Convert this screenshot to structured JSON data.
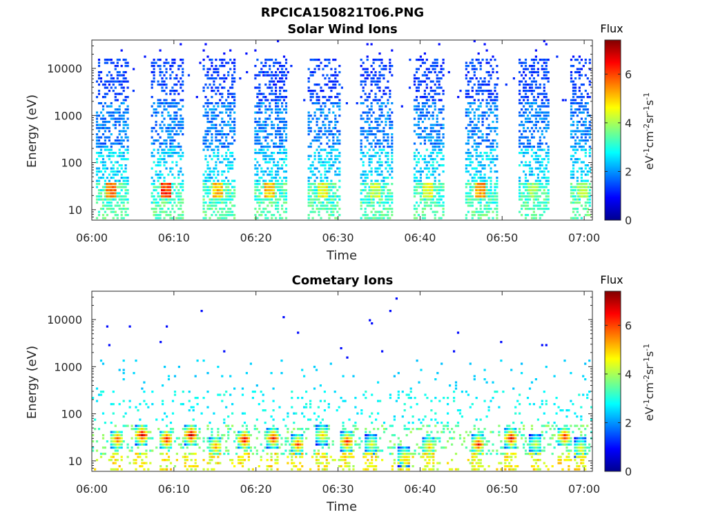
{
  "figure": {
    "title": "RPCICA150821T06.PNG"
  },
  "colors": {
    "colormap": [
      "#00008f",
      "#0000ff",
      "#0080ff",
      "#00ffff",
      "#80ff80",
      "#ffff00",
      "#ff8000",
      "#ff0000",
      "#800000"
    ],
    "axes": "#262626",
    "background": "#ffffff"
  },
  "chart_data": [
    {
      "type": "heatmap",
      "title": "Solar Wind Ions",
      "xlabel": "Time",
      "ylabel": "Energy (eV)",
      "yscale": "log",
      "ylim": [
        6,
        40000
      ],
      "xlim": [
        "06:00",
        "07:01"
      ],
      "x_ticks": [
        "06:00",
        "06:10",
        "06:20",
        "06:30",
        "06:40",
        "06:50",
        "07:00"
      ],
      "y_ticks": [
        "10",
        "100",
        "1000",
        "10000"
      ],
      "colorbar": {
        "title": "Flux",
        "label": "eV-1cm-2sr-1s-1",
        "range": [
          0,
          7.4
        ],
        "ticks": [
          "0",
          "2",
          "4",
          "6"
        ]
      },
      "bursts": [
        {
          "time": "06:00.5",
          "width_min": 3.8,
          "peak_flux": 6.0
        },
        {
          "time": "06:07.2",
          "width_min": 3.8,
          "peak_flux": 6.6
        },
        {
          "time": "06:13.5",
          "width_min": 3.8,
          "peak_flux": 5.6
        },
        {
          "time": "06:19.8",
          "width_min": 3.8,
          "peak_flux": 5.5
        },
        {
          "time": "06:26.3",
          "width_min": 3.8,
          "peak_flux": 5.0
        },
        {
          "time": "06:32.7",
          "width_min": 3.8,
          "peak_flux": 4.6
        },
        {
          "time": "06:39.2",
          "width_min": 3.6,
          "peak_flux": 5.0
        },
        {
          "time": "06:45.5",
          "width_min": 3.8,
          "peak_flux": 5.8
        },
        {
          "time": "06:52.0",
          "width_min": 3.6,
          "peak_flux": 4.3
        },
        {
          "time": "06:58.3",
          "width_min": 3.0,
          "peak_flux": 4.4
        }
      ],
      "sparse_text_ticks_note": ""
    },
    {
      "type": "heatmap",
      "title": "Cometary Ions",
      "xlabel": "Time",
      "ylabel": "Energy (eV)",
      "yscale": "log",
      "ylim": [
        6,
        40000
      ],
      "xlim": [
        "06:00",
        "07:01"
      ],
      "x_ticks": [
        "06:00",
        "06:10",
        "06:20",
        "06:30",
        "06:40",
        "06:50",
        "07:00"
      ],
      "y_ticks": [
        "10",
        "100",
        "1000",
        "10000"
      ],
      "colorbar": {
        "title": "Flux",
        "label": "eV-1cm-2sr-1s-1",
        "range": [
          0,
          7.4
        ],
        "ticks": [
          "0",
          "2",
          "4",
          "6"
        ]
      },
      "hotspots": [
        {
          "time": "06:03",
          "energy": 28,
          "peak_flux": 6.4
        },
        {
          "time": "06:06",
          "energy": 35,
          "peak_flux": 7.3
        },
        {
          "time": "06:09",
          "energy": 28,
          "peak_flux": 7.0
        },
        {
          "time": "06:12",
          "energy": 35,
          "peak_flux": 7.4
        },
        {
          "time": "06:15",
          "energy": 20,
          "peak_flux": 6.0
        },
        {
          "time": "06:18.5",
          "energy": 28,
          "peak_flux": 7.2
        },
        {
          "time": "06:22",
          "energy": 30,
          "peak_flux": 6.8
        },
        {
          "time": "06:25",
          "energy": 22,
          "peak_flux": 6.4
        },
        {
          "time": "06:28",
          "energy": 35,
          "peak_flux": 5.5
        },
        {
          "time": "06:31",
          "energy": 25,
          "peak_flux": 6.8
        },
        {
          "time": "06:34",
          "energy": 22,
          "peak_flux": 5.0
        },
        {
          "time": "06:38",
          "energy": 12,
          "peak_flux": 5.2
        },
        {
          "time": "06:41",
          "energy": 20,
          "peak_flux": 5.6
        },
        {
          "time": "06:47",
          "energy": 22,
          "peak_flux": 6.8
        },
        {
          "time": "06:51",
          "energy": 30,
          "peak_flux": 7.0
        },
        {
          "time": "06:54",
          "energy": 22,
          "peak_flux": 4.8
        },
        {
          "time": "06:57.5",
          "energy": 32,
          "peak_flux": 6.8
        },
        {
          "time": "06:59.5",
          "energy": 18,
          "peak_flux": 5.2
        }
      ]
    }
  ]
}
